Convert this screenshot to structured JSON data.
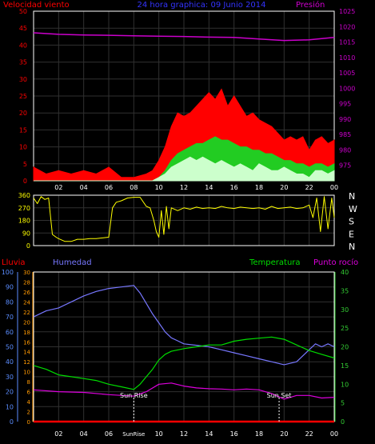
{
  "colors": {
    "bg": "#000000",
    "frame": "#ffffff",
    "grid": "#303030",
    "wind": "#ff0000",
    "wind_mid": "#22cc22",
    "wind_avg": "#ccffcc",
    "pressure": "#cc00cc",
    "direction": "#ffff00",
    "rain": "#ff0000",
    "humidity": "#7777ff",
    "temperature": "#00dd00",
    "dewpoint": "#dd00dd",
    "blue_axis": "#5b8dff",
    "orange_axis": "#ff9900",
    "green_axis": "#33cc33"
  },
  "chart_data": [
    {
      "type": "line",
      "name": "wind-pressure",
      "title": "24 hora graphica: 09 Junio 2014",
      "left_label": "Velocidad viento",
      "right_label": "Presión",
      "x_ticks": [
        "02",
        "04",
        "06",
        "08",
        "10",
        "12",
        "14",
        "16",
        "18",
        "20",
        "22",
        "00"
      ],
      "y_left": {
        "min": 0,
        "max": 50,
        "ticks": [
          0,
          5,
          10,
          15,
          20,
          25,
          30,
          35,
          40,
          45,
          50
        ]
      },
      "y_right": {
        "min": 970,
        "max": 1025,
        "ticks": [
          975,
          980,
          985,
          990,
          995,
          1000,
          1005,
          1010,
          1015,
          1020,
          1025
        ]
      },
      "x_range": [
        0,
        24
      ],
      "series": [
        {
          "key": "gust",
          "x": [
            0,
            1,
            2,
            3,
            4,
            5,
            6,
            7,
            8,
            9,
            9.5,
            10,
            10.5,
            11,
            11.5,
            12,
            12.5,
            13,
            13.5,
            14,
            14.5,
            15,
            15.5,
            16,
            16.5,
            17,
            17.5,
            18,
            18.5,
            19,
            19.5,
            20,
            20.5,
            21,
            21.5,
            22,
            22.5,
            23,
            23.5,
            24
          ],
          "values": [
            4,
            2,
            3,
            2,
            3,
            2,
            4,
            1,
            1,
            2,
            3,
            6,
            10,
            16,
            20,
            19,
            20,
            22,
            24,
            26,
            24,
            27,
            22,
            25,
            22,
            19,
            20,
            18,
            17,
            16,
            14,
            12,
            13,
            12,
            13,
            9,
            12,
            13,
            11,
            12
          ]
        },
        {
          "key": "mid",
          "x": [
            0,
            9.5,
            10,
            10.5,
            11,
            11.5,
            12,
            12.5,
            13,
            13.5,
            14,
            14.5,
            15,
            15.5,
            16,
            16.5,
            17,
            17.5,
            18,
            18.5,
            19,
            19.5,
            20,
            20.5,
            21,
            21.5,
            22,
            22.5,
            23,
            23.5,
            24
          ],
          "values": [
            0,
            0,
            1,
            3,
            6,
            8,
            9,
            10,
            11,
            11,
            12,
            13,
            12,
            12,
            11,
            10,
            10,
            9,
            9,
            8,
            8,
            7,
            6,
            6,
            5,
            5,
            4,
            5,
            5,
            4,
            5
          ]
        },
        {
          "key": "avg",
          "x": [
            0,
            9.5,
            10,
            10.5,
            11,
            11.5,
            12,
            12.5,
            13,
            13.5,
            14,
            14.5,
            15,
            15.5,
            16,
            16.5,
            17,
            17.5,
            18,
            18.5,
            19,
            19.5,
            20,
            20.5,
            21,
            21.5,
            22,
            22.5,
            23,
            23.5,
            24
          ],
          "values": [
            0,
            0,
            1,
            2,
            4,
            5,
            6,
            7,
            6,
            7,
            6,
            5,
            6,
            5,
            4,
            5,
            4,
            3,
            5,
            4,
            3,
            3,
            4,
            3,
            2,
            2,
            1,
            3,
            3,
            2,
            3
          ]
        },
        {
          "key": "pressure",
          "x": [
            0,
            2,
            4,
            6,
            8,
            10,
            12,
            14,
            16,
            18,
            20,
            22,
            24
          ],
          "values": [
            1018,
            1017.5,
            1017.3,
            1017.2,
            1017,
            1016.9,
            1016.8,
            1016.6,
            1016.5,
            1016,
            1015.5,
            1015.7,
            1016.5
          ]
        }
      ]
    },
    {
      "type": "line",
      "name": "wind-direction",
      "y_left": {
        "min": 0,
        "max": 360,
        "ticks": [
          0,
          90,
          180,
          270,
          360
        ]
      },
      "compass": [
        "N",
        "W",
        "S",
        "E",
        "N"
      ],
      "x_range": [
        0,
        24
      ],
      "series": [
        {
          "key": "direction",
          "x": [
            0,
            0.3,
            0.6,
            0.9,
            1.2,
            1.5,
            1.8,
            2,
            2.5,
            3,
            3.5,
            4,
            4.5,
            5,
            5.5,
            6,
            6.3,
            6.6,
            7,
            7.5,
            8,
            8.5,
            9,
            9.3,
            9.6,
            9.8,
            10,
            10.2,
            10.4,
            10.6,
            10.8,
            11,
            11.5,
            12,
            12.5,
            13,
            13.5,
            14,
            14.5,
            15,
            15.5,
            16,
            16.5,
            17,
            17.5,
            18,
            18.5,
            19,
            19.5,
            20,
            20.5,
            21,
            21.5,
            22,
            22.3,
            22.6,
            22.9,
            23.2,
            23.5,
            23.8,
            24
          ],
          "values": [
            340,
            300,
            350,
            330,
            340,
            80,
            60,
            50,
            30,
            30,
            45,
            45,
            50,
            50,
            55,
            60,
            270,
            310,
            320,
            340,
            345,
            345,
            280,
            270,
            180,
            100,
            60,
            250,
            80,
            280,
            120,
            270,
            250,
            270,
            260,
            275,
            265,
            270,
            265,
            280,
            270,
            265,
            275,
            270,
            265,
            270,
            260,
            280,
            265,
            270,
            275,
            265,
            270,
            290,
            200,
            340,
            100,
            350,
            120,
            340,
            200
          ]
        }
      ]
    },
    {
      "type": "line",
      "name": "rain-humidity-temperature",
      "labels": {
        "rain": "Lluvia",
        "humidity": "Humedad",
        "temperature": "Temperatura",
        "dewpoint": "Punto rocío"
      },
      "x_ticks": [
        "02",
        "04",
        "06",
        "SunRise",
        "10",
        "12",
        "14",
        "16",
        "18",
        "20",
        "22",
        "00"
      ],
      "annotations": [
        {
          "label": "Sun Rise",
          "x": 8
        },
        {
          "label": "Sun Set",
          "x": 19.6
        }
      ],
      "axis_humidity": {
        "min": 0,
        "max": 100,
        "ticks": [
          0,
          10,
          20,
          30,
          40,
          50,
          60,
          70,
          80,
          90,
          100
        ]
      },
      "axis_rain": {
        "min": 0,
        "max": 30,
        "ticks": [
          0,
          2,
          4,
          6,
          8,
          10,
          12,
          14,
          16,
          18,
          20,
          22,
          24,
          26,
          28,
          30
        ]
      },
      "axis_temp": {
        "min": 0,
        "max": 40,
        "ticks": [
          0,
          5,
          10,
          15,
          20,
          25,
          30,
          35,
          40
        ]
      },
      "x_range": [
        0,
        24
      ],
      "series": [
        {
          "key": "humidity",
          "x": [
            0,
            1,
            2,
            3,
            4,
            5,
            6,
            7,
            8,
            8.5,
            9,
            9.5,
            10,
            10.5,
            11,
            11.5,
            12,
            13,
            14,
            15,
            16,
            17,
            18,
            19,
            20,
            21,
            21.5,
            22,
            22.5,
            23,
            23.5,
            24
          ],
          "values": [
            70,
            74,
            76,
            80,
            84,
            87,
            89,
            90,
            91,
            86,
            79,
            72,
            66,
            60,
            56,
            54,
            52,
            51,
            50,
            48,
            46,
            44,
            42,
            40,
            38,
            40,
            44,
            48,
            52,
            50,
            52,
            50
          ]
        },
        {
          "key": "temperature",
          "x": [
            0,
            1,
            2,
            3,
            4,
            5,
            6,
            7,
            8,
            8.5,
            9,
            9.5,
            10,
            10.5,
            11,
            12,
            13,
            14,
            15,
            16,
            17,
            18,
            19,
            20,
            21,
            22,
            23,
            24
          ],
          "values": [
            15,
            14,
            12.5,
            12,
            11.5,
            11,
            10,
            9.3,
            8.6,
            10,
            12,
            14,
            16.5,
            18,
            18.8,
            19.5,
            20,
            20.5,
            20.5,
            21.5,
            22,
            22.3,
            22.6,
            22,
            20.5,
            19,
            18,
            17
          ]
        },
        {
          "key": "dewpoint",
          "x": [
            0,
            2,
            4,
            6,
            8,
            9,
            10,
            11,
            12,
            13,
            14,
            15,
            16,
            17,
            18,
            19,
            20,
            21,
            22,
            23,
            24
          ],
          "values": [
            8.5,
            8,
            7.8,
            7.2,
            6.8,
            8,
            10,
            10.3,
            9.5,
            9,
            8.8,
            8.7,
            8.5,
            8.7,
            8.5,
            7.5,
            6,
            7,
            7,
            6.3,
            6.5
          ]
        },
        {
          "key": "rain",
          "x": [
            0,
            24
          ],
          "values": [
            0,
            0
          ]
        }
      ]
    }
  ]
}
